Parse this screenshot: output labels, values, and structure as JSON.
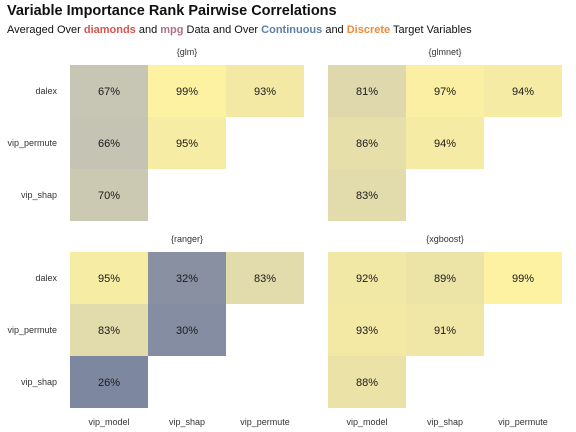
{
  "title": "Variable Importance Rank Pairwise Correlations",
  "subtitle": {
    "p1": "Averaged Over ",
    "h1": "diamonds",
    "p2": " and ",
    "h2": "mpg",
    "p3": " Data and Over ",
    "h3": "Continuous",
    "p4": " and ",
    "h4": "Discrete",
    "p5": " Target Variables"
  },
  "colors": {
    "diamonds": "#d9534f",
    "mpg": "#b0708c",
    "continuous": "#5d7fa8",
    "discrete": "#f08a3a",
    "scale_low": "#7b869f",
    "scale_mid": "#c9c6b4",
    "scale_high": "#fff3a0"
  },
  "chart_data": {
    "type": "heatmap",
    "rows": [
      "dalex",
      "vip_permute",
      "vip_shap"
    ],
    "columns": [
      "vip_model",
      "vip_shap",
      "vip_permute"
    ],
    "panels": [
      {
        "title": "{glm}",
        "values": [
          [
            67,
            99,
            93
          ],
          [
            66,
            95,
            null
          ],
          [
            70,
            null,
            null
          ]
        ]
      },
      {
        "title": "{glmnet}",
        "values": [
          [
            81,
            97,
            94
          ],
          [
            86,
            94,
            null
          ],
          [
            83,
            null,
            null
          ]
        ]
      },
      {
        "title": "{ranger}",
        "values": [
          [
            95,
            32,
            83
          ],
          [
            83,
            30,
            null
          ],
          [
            26,
            null,
            null
          ]
        ]
      },
      {
        "title": "{xgboost}",
        "values": [
          [
            92,
            89,
            99
          ],
          [
            93,
            91,
            null
          ],
          [
            88,
            null,
            null
          ]
        ]
      }
    ],
    "value_suffix": "%"
  }
}
